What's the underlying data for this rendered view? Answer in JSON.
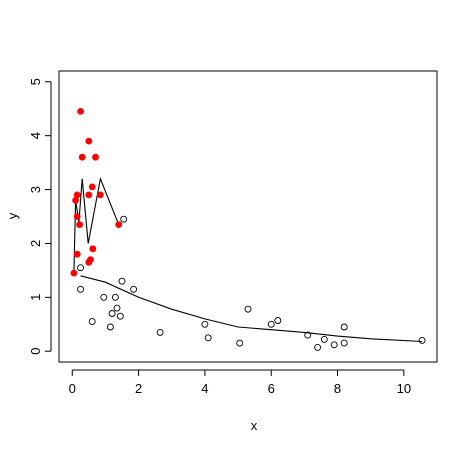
{
  "chart_data": {
    "type": "scatter",
    "title": "",
    "xlabel": "x",
    "ylabel": "y",
    "xlim": [
      -0.4,
      11.0
    ],
    "ylim": [
      -0.2,
      5.2
    ],
    "xticks": [
      0,
      2,
      4,
      6,
      8,
      10
    ],
    "yticks": [
      0,
      1,
      2,
      3,
      4,
      5
    ],
    "grid": false,
    "series": [
      {
        "marker": "open-circle",
        "color": "#000000",
        "points": [
          [
            0.25,
            1.55
          ],
          [
            0.25,
            1.15
          ],
          [
            0.6,
            0.55
          ],
          [
            0.95,
            1.0
          ],
          [
            1.15,
            0.45
          ],
          [
            1.2,
            0.7
          ],
          [
            1.3,
            1.0
          ],
          [
            1.35,
            0.8
          ],
          [
            1.45,
            0.65
          ],
          [
            1.5,
            1.3
          ],
          [
            1.55,
            2.45
          ],
          [
            1.85,
            1.15
          ],
          [
            2.65,
            0.35
          ],
          [
            4.0,
            0.5
          ],
          [
            4.1,
            0.25
          ],
          [
            5.05,
            0.15
          ],
          [
            5.3,
            0.78
          ],
          [
            6.0,
            0.5
          ],
          [
            6.2,
            0.57
          ],
          [
            7.1,
            0.3
          ],
          [
            7.4,
            0.07
          ],
          [
            7.6,
            0.22
          ],
          [
            7.9,
            0.12
          ],
          [
            8.2,
            0.45
          ],
          [
            8.2,
            0.15
          ],
          [
            10.55,
            0.2
          ]
        ]
      },
      {
        "marker": "filled-circle",
        "color": "#ff0000",
        "points": [
          [
            0.05,
            1.45
          ],
          [
            0.1,
            2.8
          ],
          [
            0.15,
            2.9
          ],
          [
            0.15,
            1.8
          ],
          [
            0.15,
            2.5
          ],
          [
            0.22,
            2.35
          ],
          [
            0.25,
            4.45
          ],
          [
            0.3,
            3.6
          ],
          [
            0.5,
            3.9
          ],
          [
            0.5,
            2.9
          ],
          [
            0.5,
            1.65
          ],
          [
            0.55,
            1.7
          ],
          [
            0.6,
            3.05
          ],
          [
            0.62,
            1.9
          ],
          [
            0.7,
            3.6
          ],
          [
            0.85,
            2.9
          ],
          [
            1.4,
            2.35
          ]
        ]
      }
    ],
    "lines": [
      {
        "color": "#000000",
        "points": [
          [
            0.05,
            1.45
          ],
          [
            0.1,
            2.8
          ],
          [
            0.2,
            2.4
          ],
          [
            0.3,
            3.2
          ],
          [
            0.48,
            2.0
          ],
          [
            0.85,
            3.2
          ],
          [
            1.4,
            2.35
          ]
        ]
      },
      {
        "color": "#000000",
        "points": [
          [
            0.25,
            1.4
          ],
          [
            1.0,
            1.28
          ],
          [
            2.0,
            1.0
          ],
          [
            3.0,
            0.78
          ],
          [
            4.0,
            0.6
          ],
          [
            5.0,
            0.45
          ],
          [
            6.0,
            0.4
          ],
          [
            7.0,
            0.35
          ],
          [
            8.0,
            0.28
          ],
          [
            9.0,
            0.23
          ],
          [
            10.55,
            0.18
          ]
        ]
      }
    ]
  }
}
